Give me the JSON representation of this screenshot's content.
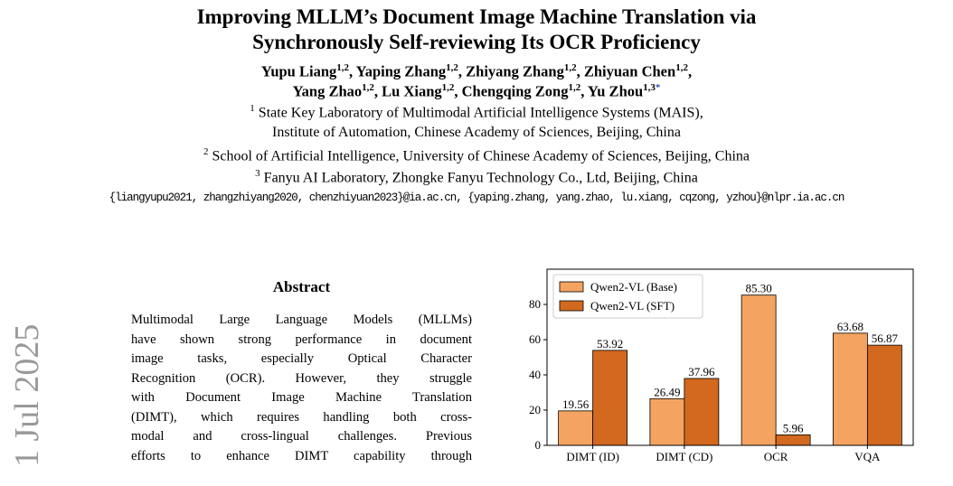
{
  "header": {
    "title_lines": [
      "Improving MLLM’s Document Image Machine Translation via",
      "Synchronously Self-reviewing Its OCR Proficiency"
    ],
    "author_lines": [
      [
        {
          "name": "Yupu Liang",
          "sup": "1,2",
          "sep": ","
        },
        {
          "name": "Yaping Zhang",
          "sup": "1,2",
          "sep": ","
        },
        {
          "name": "Zhiyang Zhang",
          "sup": "1,2",
          "sep": ","
        },
        {
          "name": "Zhiyuan Chen",
          "sup": "1,2",
          "sep": ","
        }
      ],
      [
        {
          "name": "Yang Zhao",
          "sup": "1,2",
          "sep": ","
        },
        {
          "name": "Lu Xiang",
          "sup": "1,2",
          "sep": ","
        },
        {
          "name": "Chengqing Zong",
          "sup": "1,2",
          "sep": ","
        },
        {
          "name": "Yu Zhou",
          "sup": "1,3",
          "mark": "*"
        }
      ]
    ],
    "affiliation_lines": [
      {
        "sup": "1",
        "text": "State Key Laboratory of Multimodal Artificial Intelligence Systems (MAIS),"
      },
      {
        "text": "Institute of Automation, Chinese Academy of Sciences, Beijing, China"
      },
      {
        "sup": "2",
        "text": "School of Artificial Intelligence, University of Chinese Academy of Sciences, Beijing, China"
      },
      {
        "sup": "3",
        "text": "Fanyu AI Laboratory, Zhongke Fanyu Technology Co., Ltd, Beijing, China"
      }
    ],
    "emails": "{liangyupu2021, zhangzhiyang2020, chenzhiyuan2023}@ia.ac.cn, {yaping.zhang, yang.zhao, lu.xiang, cqzong, yzhou}@nlpr.ia.ac.cn"
  },
  "margin_stamp": "1 Jul 2025",
  "abstract": {
    "heading": "Abstract",
    "lines": [
      "Multimodal Large Language Models (MLLMs)",
      "have shown strong performance in document",
      "image tasks, especially Optical Character",
      "Recognition (OCR). However, they struggle",
      "with Document Image Machine Translation",
      "(DIMT), which requires handling both cross-",
      "modal and cross-lingual challenges. Previous",
      "efforts to enhance DIMT capability through"
    ]
  },
  "chart_data": {
    "type": "bar",
    "categories": [
      "DIMT (ID)",
      "DIMT (CD)",
      "OCR",
      "VQA"
    ],
    "series": [
      {
        "name": "Qwen2-VL (Base)",
        "color": "#f4a460",
        "values": [
          19.56,
          26.49,
          85.3,
          63.68
        ],
        "value_labels": [
          "19.56",
          "26.49",
          "85.30",
          "63.68"
        ]
      },
      {
        "name": "Qwen2-VL (SFT)",
        "color": "#d2691e",
        "values": [
          53.92,
          37.96,
          5.96,
          56.87
        ]
      }
    ],
    "ylim": [
      0,
      100
    ],
    "yticks": [
      0,
      20,
      40,
      60,
      80
    ],
    "legend": "upper left"
  }
}
